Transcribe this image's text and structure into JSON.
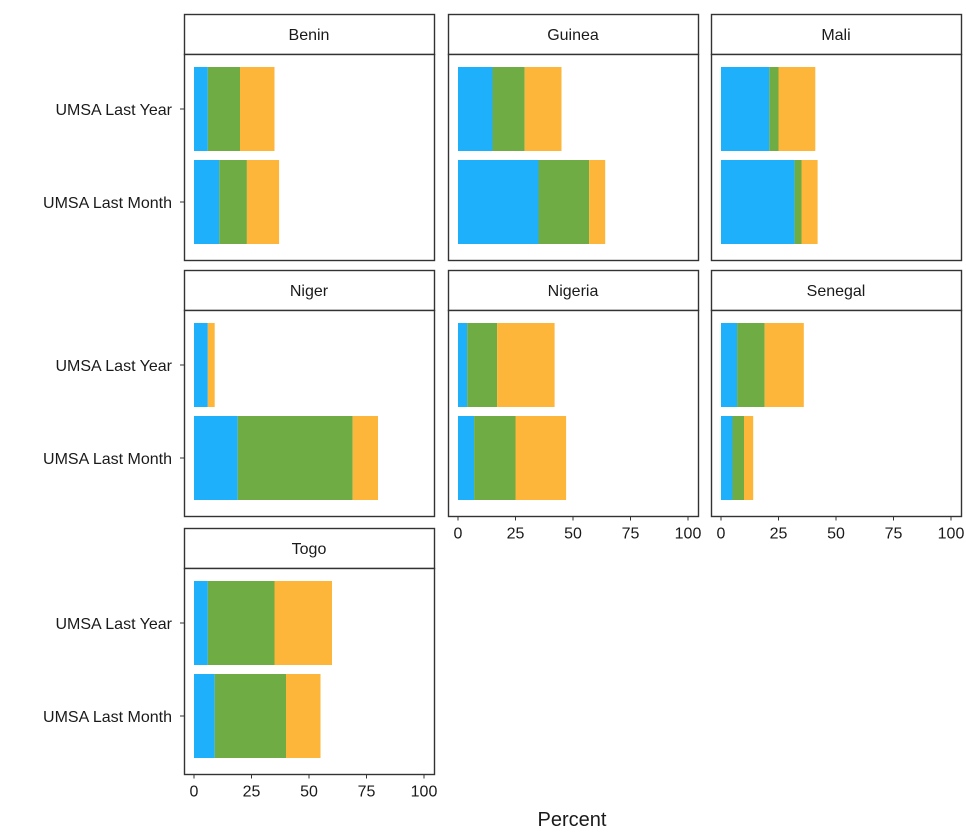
{
  "colors": {
    "blue": "#1fb0fb",
    "green": "#6fac44",
    "orange": "#feb63a",
    "panel_border": "#333333"
  },
  "chart_data": {
    "type": "bar",
    "orientation": "horizontal",
    "stacked": true,
    "xlabel": "Percent",
    "ylabel": "",
    "xlim": [
      0,
      100
    ],
    "xticks": [
      "0",
      "25",
      "50",
      "75",
      "100"
    ],
    "categories": [
      "UMSA Last Year",
      "UMSA Last Month"
    ],
    "grid": false,
    "legend": "none",
    "panels": [
      {
        "name": "Benin",
        "bars": [
          {
            "category": "UMSA Last Year",
            "segments": [
              6,
              14,
              15
            ]
          },
          {
            "category": "UMSA Last Month",
            "segments": [
              11,
              12,
              14
            ]
          }
        ]
      },
      {
        "name": "Guinea",
        "bars": [
          {
            "category": "UMSA Last Year",
            "segments": [
              15,
              14,
              16
            ]
          },
          {
            "category": "UMSA Last Month",
            "segments": [
              35,
              22,
              7
            ]
          }
        ]
      },
      {
        "name": "Mali",
        "bars": [
          {
            "category": "UMSA Last Year",
            "segments": [
              21,
              4,
              16
            ]
          },
          {
            "category": "UMSA Last Month",
            "segments": [
              32,
              3,
              7
            ]
          }
        ]
      },
      {
        "name": "Niger",
        "bars": [
          {
            "category": "UMSA Last Year",
            "segments": [
              6,
              0,
              3
            ]
          },
          {
            "category": "UMSA Last Month",
            "segments": [
              19,
              50,
              11
            ]
          }
        ]
      },
      {
        "name": "Nigeria",
        "bars": [
          {
            "category": "UMSA Last Year",
            "segments": [
              4,
              13,
              25
            ]
          },
          {
            "category": "UMSA Last Month",
            "segments": [
              7,
              18,
              22
            ]
          }
        ]
      },
      {
        "name": "Senegal",
        "bars": [
          {
            "category": "UMSA Last Year",
            "segments": [
              7,
              12,
              17
            ]
          },
          {
            "category": "UMSA Last Month",
            "segments": [
              5,
              5,
              4
            ]
          }
        ]
      },
      {
        "name": "Togo",
        "bars": [
          {
            "category": "UMSA Last Year",
            "segments": [
              6,
              29,
              25
            ]
          },
          {
            "category": "UMSA Last Month",
            "segments": [
              9,
              31,
              15
            ]
          }
        ]
      }
    ]
  }
}
